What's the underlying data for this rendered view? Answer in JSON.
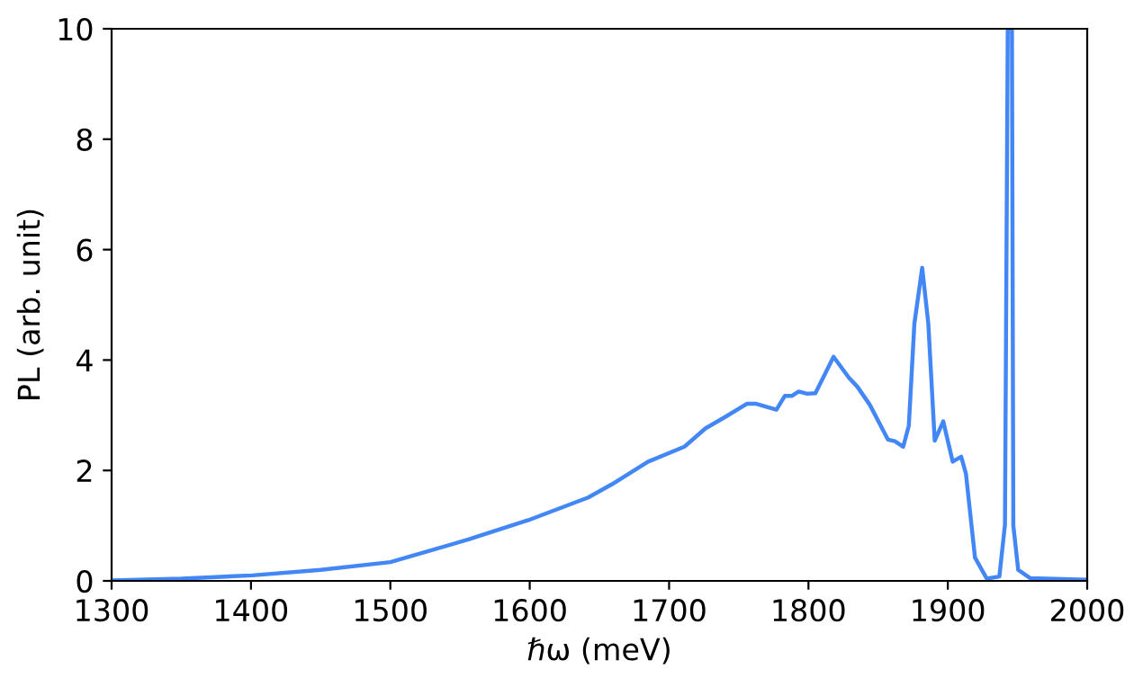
{
  "chart_data": {
    "type": "line",
    "xlabel": "ℏω (meV)",
    "ylabel": "PL (arb. unit)",
    "xlim": [
      1300,
      2000
    ],
    "ylim": [
      0,
      10
    ],
    "xticks": [
      1300,
      1400,
      1500,
      1600,
      1700,
      1800,
      1900,
      2000
    ],
    "yticks": [
      0,
      2,
      4,
      6,
      8,
      10
    ],
    "grid": false,
    "series": [
      {
        "color": "#4287f5",
        "x": [
          1300,
          1350,
          1401,
          1450,
          1500,
          1556,
          1599,
          1642,
          1659,
          1685,
          1711,
          1726,
          1741,
          1756,
          1762,
          1777,
          1783,
          1788,
          1793,
          1799,
          1805,
          1818,
          1829,
          1835,
          1844,
          1857,
          1862,
          1868,
          1872,
          1876,
          1881.6,
          1886,
          1890.6,
          1896.7,
          1903.5,
          1909.6,
          1913,
          1919.5,
          1928,
          1937,
          1941,
          1943,
          1944.5,
          1946,
          1947,
          1950.5,
          1959,
          2000
        ],
        "values": [
          0.01,
          0.04,
          0.1,
          0.2,
          0.34,
          0.75,
          1.1,
          1.51,
          1.75,
          2.16,
          2.43,
          2.76,
          2.98,
          3.21,
          3.21,
          3.1,
          3.35,
          3.35,
          3.43,
          3.39,
          3.4,
          4.06,
          3.68,
          3.52,
          3.19,
          2.56,
          2.53,
          2.43,
          2.81,
          4.66,
          5.67,
          4.66,
          2.54,
          2.89,
          2.16,
          2.25,
          1.94,
          0.42,
          0.04,
          0.08,
          1.02,
          10,
          10,
          10,
          1.0,
          0.2,
          0.05,
          0.02
        ]
      }
    ]
  }
}
